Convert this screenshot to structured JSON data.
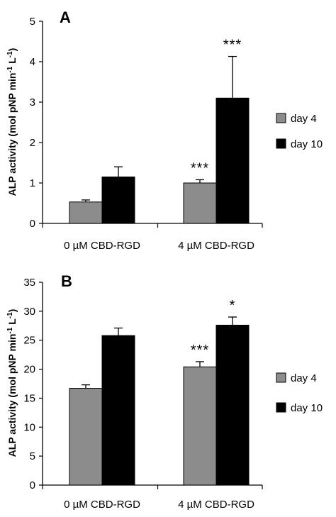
{
  "chart_data": [
    {
      "type": "bar",
      "panel_label": "A",
      "categories": [
        "0 µM CBD-RGD",
        "4 µM CBD-RGD"
      ],
      "series": [
        {
          "name": "day 4",
          "values": [
            0.53,
            1.0
          ],
          "errors": [
            0.05,
            0.08
          ],
          "color": "#8c8c8c"
        },
        {
          "name": "day 10",
          "values": [
            1.15,
            3.1
          ],
          "errors": [
            0.25,
            1.03
          ],
          "color": "#000000"
        }
      ],
      "annotations": [
        {
          "series": 0,
          "category": 1,
          "text": "***"
        },
        {
          "series": 1,
          "category": 1,
          "text": "***"
        }
      ],
      "ylabel": "ALP activity (mol pNP min",
      "ylabel_sup": "-1",
      "ylabel_mid": " L",
      "ylabel_sup2": "-1",
      "ylabel_end": ")",
      "ylim": [
        0,
        5
      ],
      "yticks": [
        0,
        1,
        2,
        3,
        4,
        5
      ],
      "legend_position": "right"
    },
    {
      "type": "bar",
      "panel_label": "B",
      "categories": [
        "0 µM CBD-RGD",
        "4 µM CBD-RGD"
      ],
      "series": [
        {
          "name": "day 4",
          "values": [
            16.7,
            20.4
          ],
          "errors": [
            0.6,
            0.9
          ],
          "color": "#8c8c8c"
        },
        {
          "name": "day 10",
          "values": [
            25.8,
            27.6
          ],
          "errors": [
            1.3,
            1.4
          ],
          "color": "#000000"
        }
      ],
      "annotations": [
        {
          "series": 0,
          "category": 1,
          "text": "***"
        },
        {
          "series": 1,
          "category": 1,
          "text": "*"
        }
      ],
      "ylabel": "ALP activity (mol pNP min",
      "ylabel_sup": "-1",
      "ylabel_mid": " L",
      "ylabel_sup2": "-1",
      "ylabel_end": ")",
      "ylim": [
        0,
        35
      ],
      "yticks": [
        0,
        5,
        10,
        15,
        20,
        25,
        30,
        35
      ],
      "legend_position": "right"
    }
  ]
}
